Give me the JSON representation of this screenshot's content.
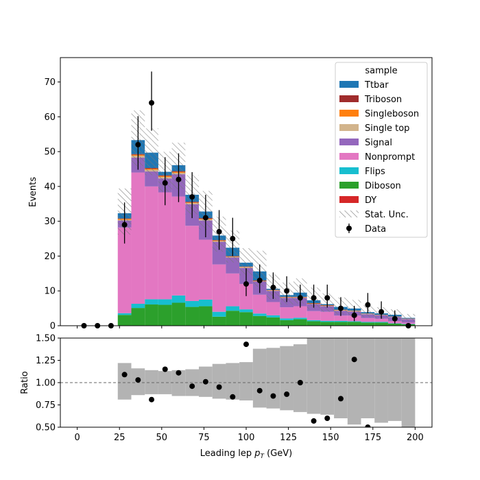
{
  "chart_data": [
    {
      "type": "stacked-histogram",
      "panel": "main",
      "xlim": [
        -10,
        210
      ],
      "ylim": [
        0,
        77
      ],
      "ylabel": "Events",
      "yticks": [
        0,
        10,
        20,
        30,
        40,
        50,
        60,
        70
      ],
      "bin_edges": [
        24,
        32,
        40,
        48,
        56,
        64,
        72,
        80,
        88,
        96,
        104,
        112,
        120,
        128,
        136,
        144,
        152,
        160,
        168,
        176,
        184,
        192,
        200
      ],
      "stack_order": [
        "DY",
        "Diboson",
        "Flips",
        "Nonprompt",
        "Signal",
        "Single top",
        "Singleboson",
        "Triboson",
        "Ttbar"
      ],
      "series": [
        {
          "name": "Ttbar",
          "color": "#1f77b4",
          "values": [
            1.5,
            4.0,
            4.4,
            1.0,
            1.7,
            2.0,
            1.9,
            1.3,
            2.4,
            1.1,
            2.6,
            0.3,
            0.5,
            1.2,
            0.8,
            0.3,
            0.8,
            0.6,
            0.4,
            0.4,
            0.5,
            0.2
          ]
        },
        {
          "name": "Triboson",
          "color": "#a02c2c",
          "values": [
            0.1,
            0.2,
            0.2,
            0.2,
            0.2,
            0.2,
            0.2,
            0.1,
            0.1,
            0.1,
            0.1,
            0.1,
            0.1,
            0.1,
            0.1,
            0.1,
            0.1,
            0.05,
            0.05,
            0.05,
            0.05,
            0.05
          ]
        },
        {
          "name": "Singleboson",
          "color": "#ff7f0e",
          "values": [
            0.3,
            0.3,
            0.3,
            0.3,
            0.3,
            0.2,
            0.2,
            0.2,
            0.1,
            0.1,
            0.1,
            0.1,
            0.1,
            0.1,
            0.1,
            0.1,
            0.1,
            0.1,
            0.05,
            0.05,
            0.05,
            0.05
          ]
        },
        {
          "name": "Single top",
          "color": "#d2b48c",
          "values": [
            0.2,
            0.5,
            0.5,
            0.4,
            0.4,
            0.3,
            0.3,
            0.2,
            0.2,
            0.2,
            0.1,
            0.1,
            0.1,
            0.1,
            0.1,
            0.1,
            0.1,
            0.1,
            0.1,
            0.05,
            0.05,
            0.05
          ]
        },
        {
          "name": "Signal",
          "color": "#9467bd",
          "values": [
            2.0,
            4.3,
            4.3,
            4.0,
            6.4,
            6.2,
            5.5,
            6.5,
            4.6,
            4.6,
            3.8,
            3.2,
            2.7,
            2.4,
            2.0,
            1.6,
            1.4,
            1.2,
            1.1,
            1.0,
            1.2,
            1.0
          ]
        },
        {
          "name": "Nonprompt",
          "color": "#e377c2",
          "values": [
            24.6,
            37.7,
            32.4,
            30.7,
            28.4,
            21.6,
            17.2,
            13.6,
            9.4,
            7.3,
            5.4,
            3.8,
            3.2,
            3.3,
            2.6,
            2.6,
            1.5,
            1.6,
            1.1,
            0.9,
            0.6,
            0.4
          ]
        },
        {
          "name": "Flips",
          "color": "#17becf",
          "values": [
            0.5,
            1.2,
            1.5,
            1.6,
            2.1,
            1.7,
            1.9,
            1.4,
            1.3,
            0.8,
            0.7,
            0.6,
            0.5,
            0.4,
            0.3,
            0.3,
            0.3,
            0.2,
            0.2,
            0.2,
            0.1,
            0.1
          ]
        },
        {
          "name": "Diboson",
          "color": "#2ca02c",
          "values": [
            3.0,
            5.0,
            6.0,
            5.9,
            6.5,
            5.3,
            5.5,
            2.5,
            4.2,
            3.8,
            2.7,
            2.3,
            1.5,
            1.8,
            1.2,
            1.0,
            1.0,
            1.0,
            0.8,
            0.8,
            0.5,
            0.3
          ]
        },
        {
          "name": "DY",
          "color": "#d62728",
          "values": [
            0.1,
            0.1,
            0.1,
            0.1,
            0.1,
            0.1,
            0.1,
            0.1,
            0.1,
            0.1,
            0.1,
            0.1,
            0.1,
            0.1,
            0.1,
            0.1,
            0.1,
            0.1,
            0.1,
            0.1,
            0.1,
            0.1
          ]
        }
      ],
      "stat_unc": {
        "name": "Stat. Unc.",
        "rel_low": [
          0.19,
          0.14,
          0.13,
          0.13,
          0.15,
          0.15,
          0.16,
          0.18,
          0.19,
          0.2,
          0.28,
          0.29,
          0.31,
          0.33,
          0.35,
          0.36,
          0.4,
          0.47,
          0.4,
          0.45,
          0.43,
          0.5
        ],
        "rel_high": [
          0.22,
          0.16,
          0.14,
          0.13,
          0.14,
          0.15,
          0.18,
          0.21,
          0.22,
          0.23,
          0.38,
          0.39,
          0.41,
          0.43,
          0.5,
          0.5,
          0.5,
          0.5,
          0.5,
          0.5,
          0.5,
          0.5
        ]
      },
      "data": {
        "name": "Data",
        "x": [
          4,
          12,
          20,
          28,
          36,
          44,
          52,
          60,
          68,
          76,
          84,
          92,
          100,
          108,
          116,
          124,
          132,
          140,
          148,
          156,
          164,
          172,
          180,
          188,
          196
        ],
        "y": [
          0,
          0,
          0,
          29,
          52,
          64,
          41,
          42,
          37,
          31,
          27,
          25,
          12,
          13,
          11,
          10,
          8,
          8,
          8,
          5,
          3,
          6,
          4,
          2,
          0
        ],
        "err_low": [
          0,
          0,
          0,
          5.4,
          7.2,
          8.0,
          6.4,
          6.5,
          6.1,
          5.6,
          5.2,
          5.0,
          3.5,
          3.6,
          3.3,
          3.2,
          2.8,
          2.8,
          2.8,
          2.2,
          1.7,
          2.4,
          2.0,
          1.4,
          0
        ],
        "err_high": [
          0,
          0,
          0,
          6.4,
          8.2,
          9.0,
          7.4,
          7.5,
          7.1,
          6.6,
          6.2,
          6.0,
          4.5,
          4.6,
          4.3,
          4.2,
          3.8,
          3.8,
          3.8,
          3.2,
          2.7,
          3.4,
          3.0,
          2.4,
          0
        ]
      },
      "legend": {
        "title": "sample",
        "placement": "top-right"
      }
    },
    {
      "type": "scatter",
      "panel": "ratio",
      "xlim": [
        -10,
        210
      ],
      "ylim": [
        0.5,
        1.5
      ],
      "xlabel": "Leading lep p_T (GeV)",
      "ylabel": "Ratio",
      "xticks": [
        0,
        25,
        50,
        75,
        100,
        125,
        150,
        175,
        200
      ],
      "yticks": [
        0.5,
        0.75,
        1.0,
        1.25,
        1.5
      ],
      "ytick_labels": [
        "0.50",
        "0.75",
        "1.00",
        "1.25",
        "1.50"
      ],
      "reference_line": 1.0,
      "x": [
        28,
        36,
        44,
        52,
        60,
        68,
        76,
        84,
        92,
        100,
        108,
        116,
        124,
        132,
        140,
        148,
        156,
        164,
        172
      ],
      "y": [
        1.09,
        1.03,
        0.81,
        1.15,
        1.11,
        0.96,
        1.01,
        0.95,
        0.84,
        1.43,
        0.91,
        0.85,
        0.87,
        1.0,
        0.57,
        0.6,
        0.82,
        1.26,
        0.5
      ]
    }
  ],
  "axis_texts": {
    "main_ylabel": "Events",
    "ratio_ylabel": "Ratio",
    "xlabel_main": "Leading lep ",
    "xlabel_sym": "p",
    "xlabel_sub": "T",
    "xlabel_unit": " (GeV)"
  }
}
